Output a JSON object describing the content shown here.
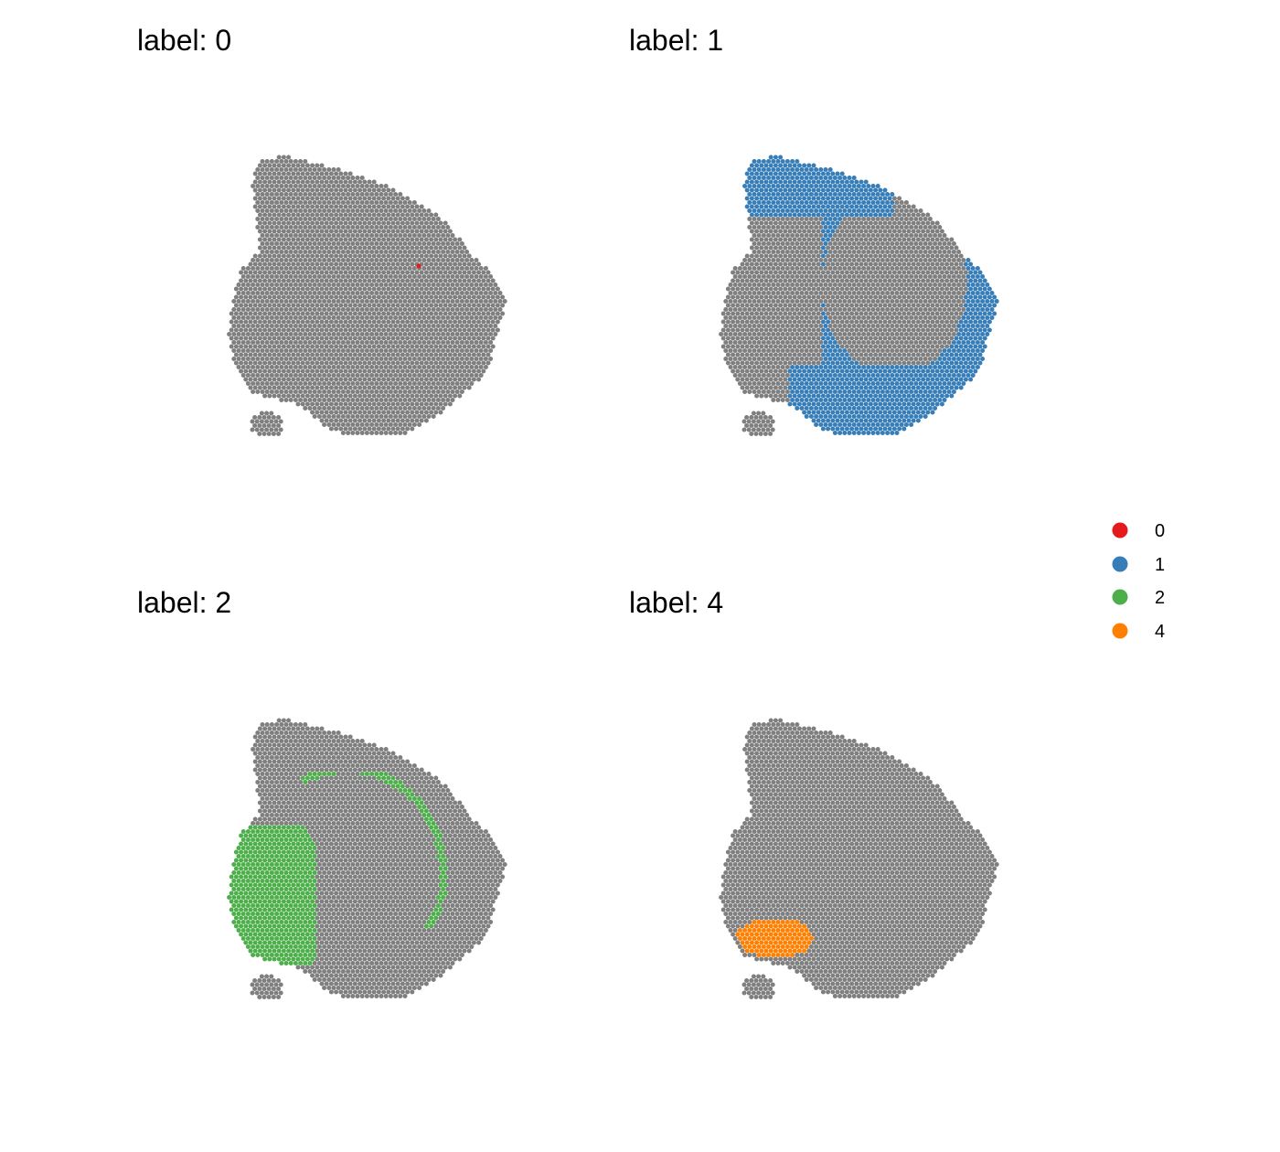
{
  "chart_data": [
    {
      "type": "scatter",
      "title": "label: 0",
      "highlight_label": "0",
      "highlight_color": "#E41A1C",
      "background_color": "#7F7F7F"
    },
    {
      "type": "scatter",
      "title": "label: 1",
      "highlight_label": "1",
      "highlight_color": "#377EB8",
      "background_color": "#7F7F7F"
    },
    {
      "type": "scatter",
      "title": "label: 2",
      "highlight_label": "2",
      "highlight_color": "#4DAF4A",
      "background_color": "#7F7F7F"
    },
    {
      "type": "scatter",
      "title": "label: 4",
      "highlight_label": "4",
      "highlight_color": "#FF7F00",
      "background_color": "#7F7F7F"
    }
  ],
  "legend": {
    "items": [
      {
        "label": "0",
        "color": "#E41A1C"
      },
      {
        "label": "1",
        "color": "#377EB8"
      },
      {
        "label": "2",
        "color": "#4DAF4A"
      },
      {
        "label": "4",
        "color": "#FF7F00"
      }
    ]
  }
}
